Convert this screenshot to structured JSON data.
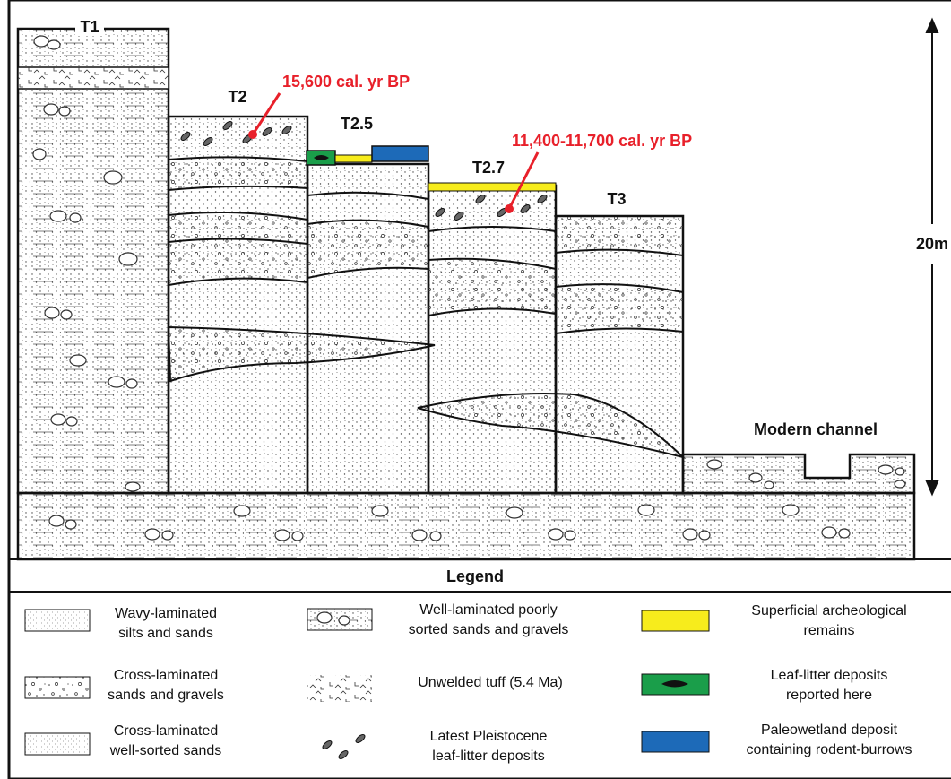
{
  "terraces": {
    "t1": "T1",
    "t2": "T2",
    "t25": "T2.5",
    "t27": "T2.7",
    "t3": "T3",
    "modern": "Modern channel"
  },
  "dates": {
    "t2_date": "15,600 cal. yr BP",
    "t27_date": "11,400-11,700 cal. yr BP"
  },
  "scale": {
    "label": "20m"
  },
  "legend": {
    "title": "Legend",
    "items": [
      {
        "line1": "Wavy-laminated",
        "line2": "silts and sands",
        "pattern": "wavy-laminated-pattern"
      },
      {
        "line1": "Cross-laminated",
        "line2": "sands and gravels",
        "pattern": "cross-laminated-gravel-pattern"
      },
      {
        "line1": "Cross-laminated",
        "line2": "well-sorted sands",
        "pattern": "cross-laminated-sand-pattern"
      },
      {
        "line1": "Well-laminated poorly",
        "line2": "sorted sands and gravels",
        "pattern": "poorly-sorted-gravel-pattern"
      },
      {
        "line1": "Unwelded tuff (5.4 Ma)",
        "line2": "",
        "pattern": "tuff-pattern"
      },
      {
        "line1": "Latest Pleistocene",
        "line2": "leaf-litter deposits",
        "pattern": "leaf-litter-icon"
      },
      {
        "line1": "Superficial archeological",
        "line2": "remains",
        "color": "#f7ec1c"
      },
      {
        "line1": "Leaf-litter deposits",
        "line2": "reported here",
        "color": "#1a9e4a"
      },
      {
        "line1": "Paleowetland deposit",
        "line2": "containing rodent-burrows",
        "color": "#1d6ab8"
      }
    ]
  },
  "colors": {
    "date_red": "#e8202a",
    "archeological_yellow": "#f7ec1c",
    "leaf_green": "#1a9e4a",
    "wetland_blue": "#1d6ab8"
  }
}
